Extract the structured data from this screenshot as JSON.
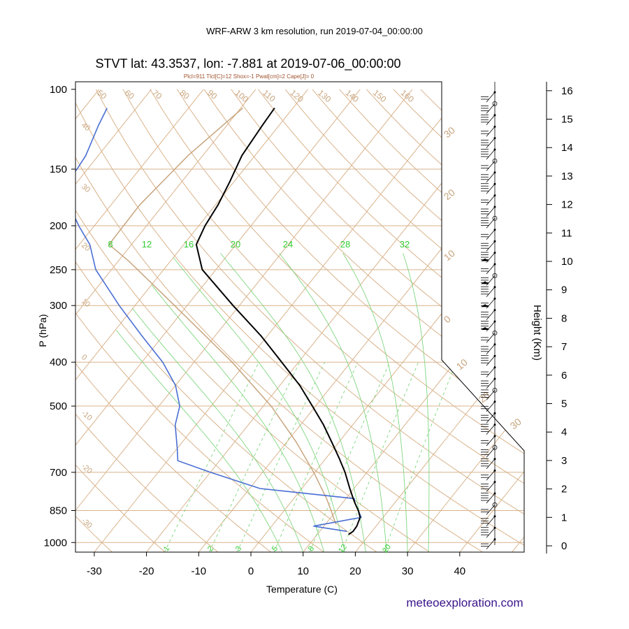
{
  "chart_data": {
    "type": "line",
    "title": "WRF-ARW 3 km resolution, run 2019-07-04_00:00:00",
    "subtitle": "STVT lat: 43.3537, lon: -7.881 at 2019-07-06_00:00:00",
    "indices": "Plcl=911 Tlcl[C]=12 Shox=-1 Pwat[cm]=2 Cape[J]= 0",
    "xlabel": "Temperature (C)",
    "ylabel": "P (hPa)",
    "y2label": "Height (Km)",
    "credit": "meteoexploration.com",
    "xlim": [
      -35,
      45
    ],
    "ylim": [
      1050,
      100
    ],
    "y_scale": "log",
    "skew": "skew-T",
    "x_ticks": [
      "-30",
      "-20",
      "-10",
      "0",
      "10",
      "20",
      "30",
      "40"
    ],
    "y_ticks": [
      "100",
      "150",
      "200",
      "250",
      "300",
      "400",
      "500",
      "700",
      "850",
      "1000"
    ],
    "height_ticks": [
      "0",
      "1",
      "2",
      "3",
      "4",
      "5",
      "6",
      "7",
      "8",
      "9",
      "10",
      "11",
      "12",
      "13",
      "14",
      "15",
      "16"
    ],
    "dry_adiabat_labels": [
      "50",
      "60",
      "70",
      "80",
      "90",
      "100",
      "110",
      "120",
      "130",
      "140",
      "150",
      "160"
    ],
    "isotherm_left_labels": [
      "40",
      "30",
      "20",
      "10",
      "0",
      "-10",
      "-20",
      "-30"
    ],
    "isotherm_right_labels": [
      "30",
      "20",
      "10",
      "0",
      "10",
      "20",
      "30"
    ],
    "moist_adiabat_labels": [
      "8",
      "12",
      "16",
      "20",
      "24",
      "28",
      "32"
    ],
    "mixing_ratio_labels": [
      "1",
      "2",
      "3",
      "5",
      "8",
      "12",
      "20"
    ],
    "series": [
      {
        "name": "Temperature",
        "color": "#000000",
        "p": [
          960,
          945,
          920,
          880,
          850,
          820,
          800,
          760,
          700,
          650,
          600,
          550,
          500,
          450,
          400,
          350,
          300,
          250,
          220,
          200,
          180,
          160,
          140,
          120,
          110
        ],
        "t": [
          16,
          16.4,
          16.3,
          15.6,
          14.2,
          12.5,
          11.4,
          9.2,
          5.8,
          2.4,
          -1.4,
          -5.6,
          -10.6,
          -16.2,
          -23.2,
          -31.2,
          -41.2,
          -52.6,
          -57.6,
          -58.8,
          -59.5,
          -60.8,
          -62.5,
          -63.2,
          -63.5
        ]
      },
      {
        "name": "Dew point",
        "color": "#4a6fd3",
        "p": [
          945,
          920,
          880,
          850,
          820,
          800,
          760,
          700,
          660,
          620,
          550,
          500,
          450,
          400,
          350,
          300,
          250,
          220,
          200,
          180,
          170,
          160,
          150,
          140,
          120,
          110
        ],
        "td": [
          15.2,
          8,
          15.8,
          14.2,
          12.5,
          11.6,
          -8,
          -20,
          -28,
          -30,
          -34,
          -36,
          -40,
          -46,
          -54,
          -63,
          -73,
          -78,
          -83,
          -88,
          -91,
          -92,
          -92,
          -92.4,
          -94.6,
          -95.6
        ]
      },
      {
        "name": "Parcel",
        "color": "#c8a57e",
        "p": [
          911,
          850,
          800,
          700,
          600,
          500,
          400,
          300,
          240,
          220,
          180,
          140,
          110
        ],
        "t": [
          12,
          9,
          6.3,
          -0.2,
          -8.2,
          -18.5,
          -32.7,
          -52.4,
          -67.8,
          -74.3,
          -74.5,
          -72.8,
          -69.6
        ]
      }
    ]
  }
}
